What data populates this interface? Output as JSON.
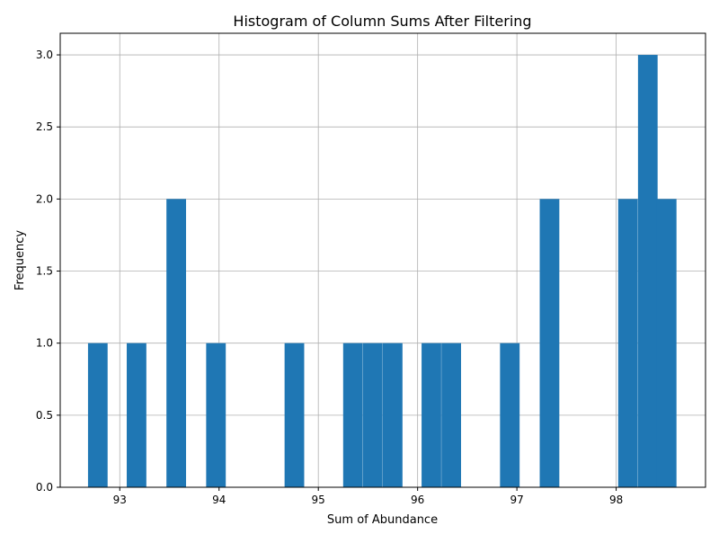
{
  "chart_data": {
    "type": "bar",
    "title": "Histogram of Column Sums After Filtering",
    "xlabel": "Sum of Abundance",
    "ylabel": "Frequency",
    "xlim": [
      92.4,
      98.9
    ],
    "ylim": [
      0,
      3.15
    ],
    "xticks": [
      93,
      94,
      95,
      96,
      97,
      98
    ],
    "yticks": [
      0.0,
      0.5,
      1.0,
      1.5,
      2.0,
      2.5,
      3.0
    ],
    "grid": true,
    "color": "#1f77b4",
    "bin_width": 0.1975,
    "bins": [
      {
        "start": 92.68,
        "count": 1
      },
      {
        "start": 93.07,
        "count": 1
      },
      {
        "start": 93.47,
        "count": 2
      },
      {
        "start": 93.87,
        "count": 1
      },
      {
        "start": 94.66,
        "count": 1
      },
      {
        "start": 95.25,
        "count": 1
      },
      {
        "start": 95.45,
        "count": 1
      },
      {
        "start": 95.65,
        "count": 1
      },
      {
        "start": 96.04,
        "count": 1
      },
      {
        "start": 96.24,
        "count": 1
      },
      {
        "start": 96.83,
        "count": 1
      },
      {
        "start": 97.23,
        "count": 2
      },
      {
        "start": 98.02,
        "count": 2
      },
      {
        "start": 98.22,
        "count": 3
      },
      {
        "start": 98.41,
        "count": 2
      }
    ]
  }
}
